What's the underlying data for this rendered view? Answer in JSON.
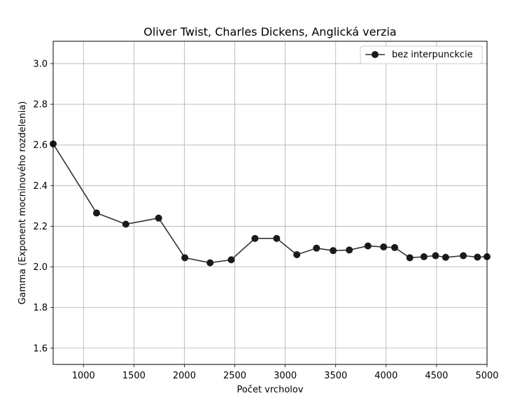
{
  "chart_data": {
    "type": "line",
    "title": "Oliver Twist, Charles Dickens, Anglická verzia",
    "xlabel": "Počet vrcholov",
    "ylabel": "Gamma (Exponent mocninového rozdelenia)",
    "xlim": [
      700,
      5000
    ],
    "ylim": [
      1.52,
      3.11
    ],
    "xticks": [
      1000,
      1500,
      2000,
      2500,
      3000,
      3500,
      4000,
      4500,
      5000
    ],
    "xtick_labels": [
      "1000",
      "1500",
      "2000",
      "2500",
      "3000",
      "3500",
      "4000",
      "4500",
      "5000"
    ],
    "yticks": [
      1.6,
      1.8,
      2.0,
      2.2,
      2.4,
      2.6,
      2.8,
      3.0
    ],
    "ytick_labels": [
      "1.6",
      "1.8",
      "2.0",
      "2.2",
      "2.4",
      "2.6",
      "2.8",
      "3.0"
    ],
    "grid": true,
    "legend_position": "top-right",
    "series": [
      {
        "name": "bez interpunckcie",
        "color": "#333333",
        "marker": "circle",
        "x": [
          700,
          1130,
          1420,
          1745,
          2005,
          2255,
          2465,
          2700,
          2915,
          3115,
          3310,
          3475,
          3635,
          3820,
          3975,
          4085,
          4235,
          4375,
          4490,
          4590,
          4765,
          4905,
          5000
        ],
        "y": [
          2.605,
          2.265,
          2.21,
          2.24,
          2.045,
          2.02,
          2.035,
          2.14,
          2.14,
          2.06,
          2.092,
          2.08,
          2.083,
          2.103,
          2.098,
          2.095,
          2.045,
          2.05,
          2.055,
          2.047,
          2.055,
          2.048,
          2.05
        ]
      }
    ]
  }
}
